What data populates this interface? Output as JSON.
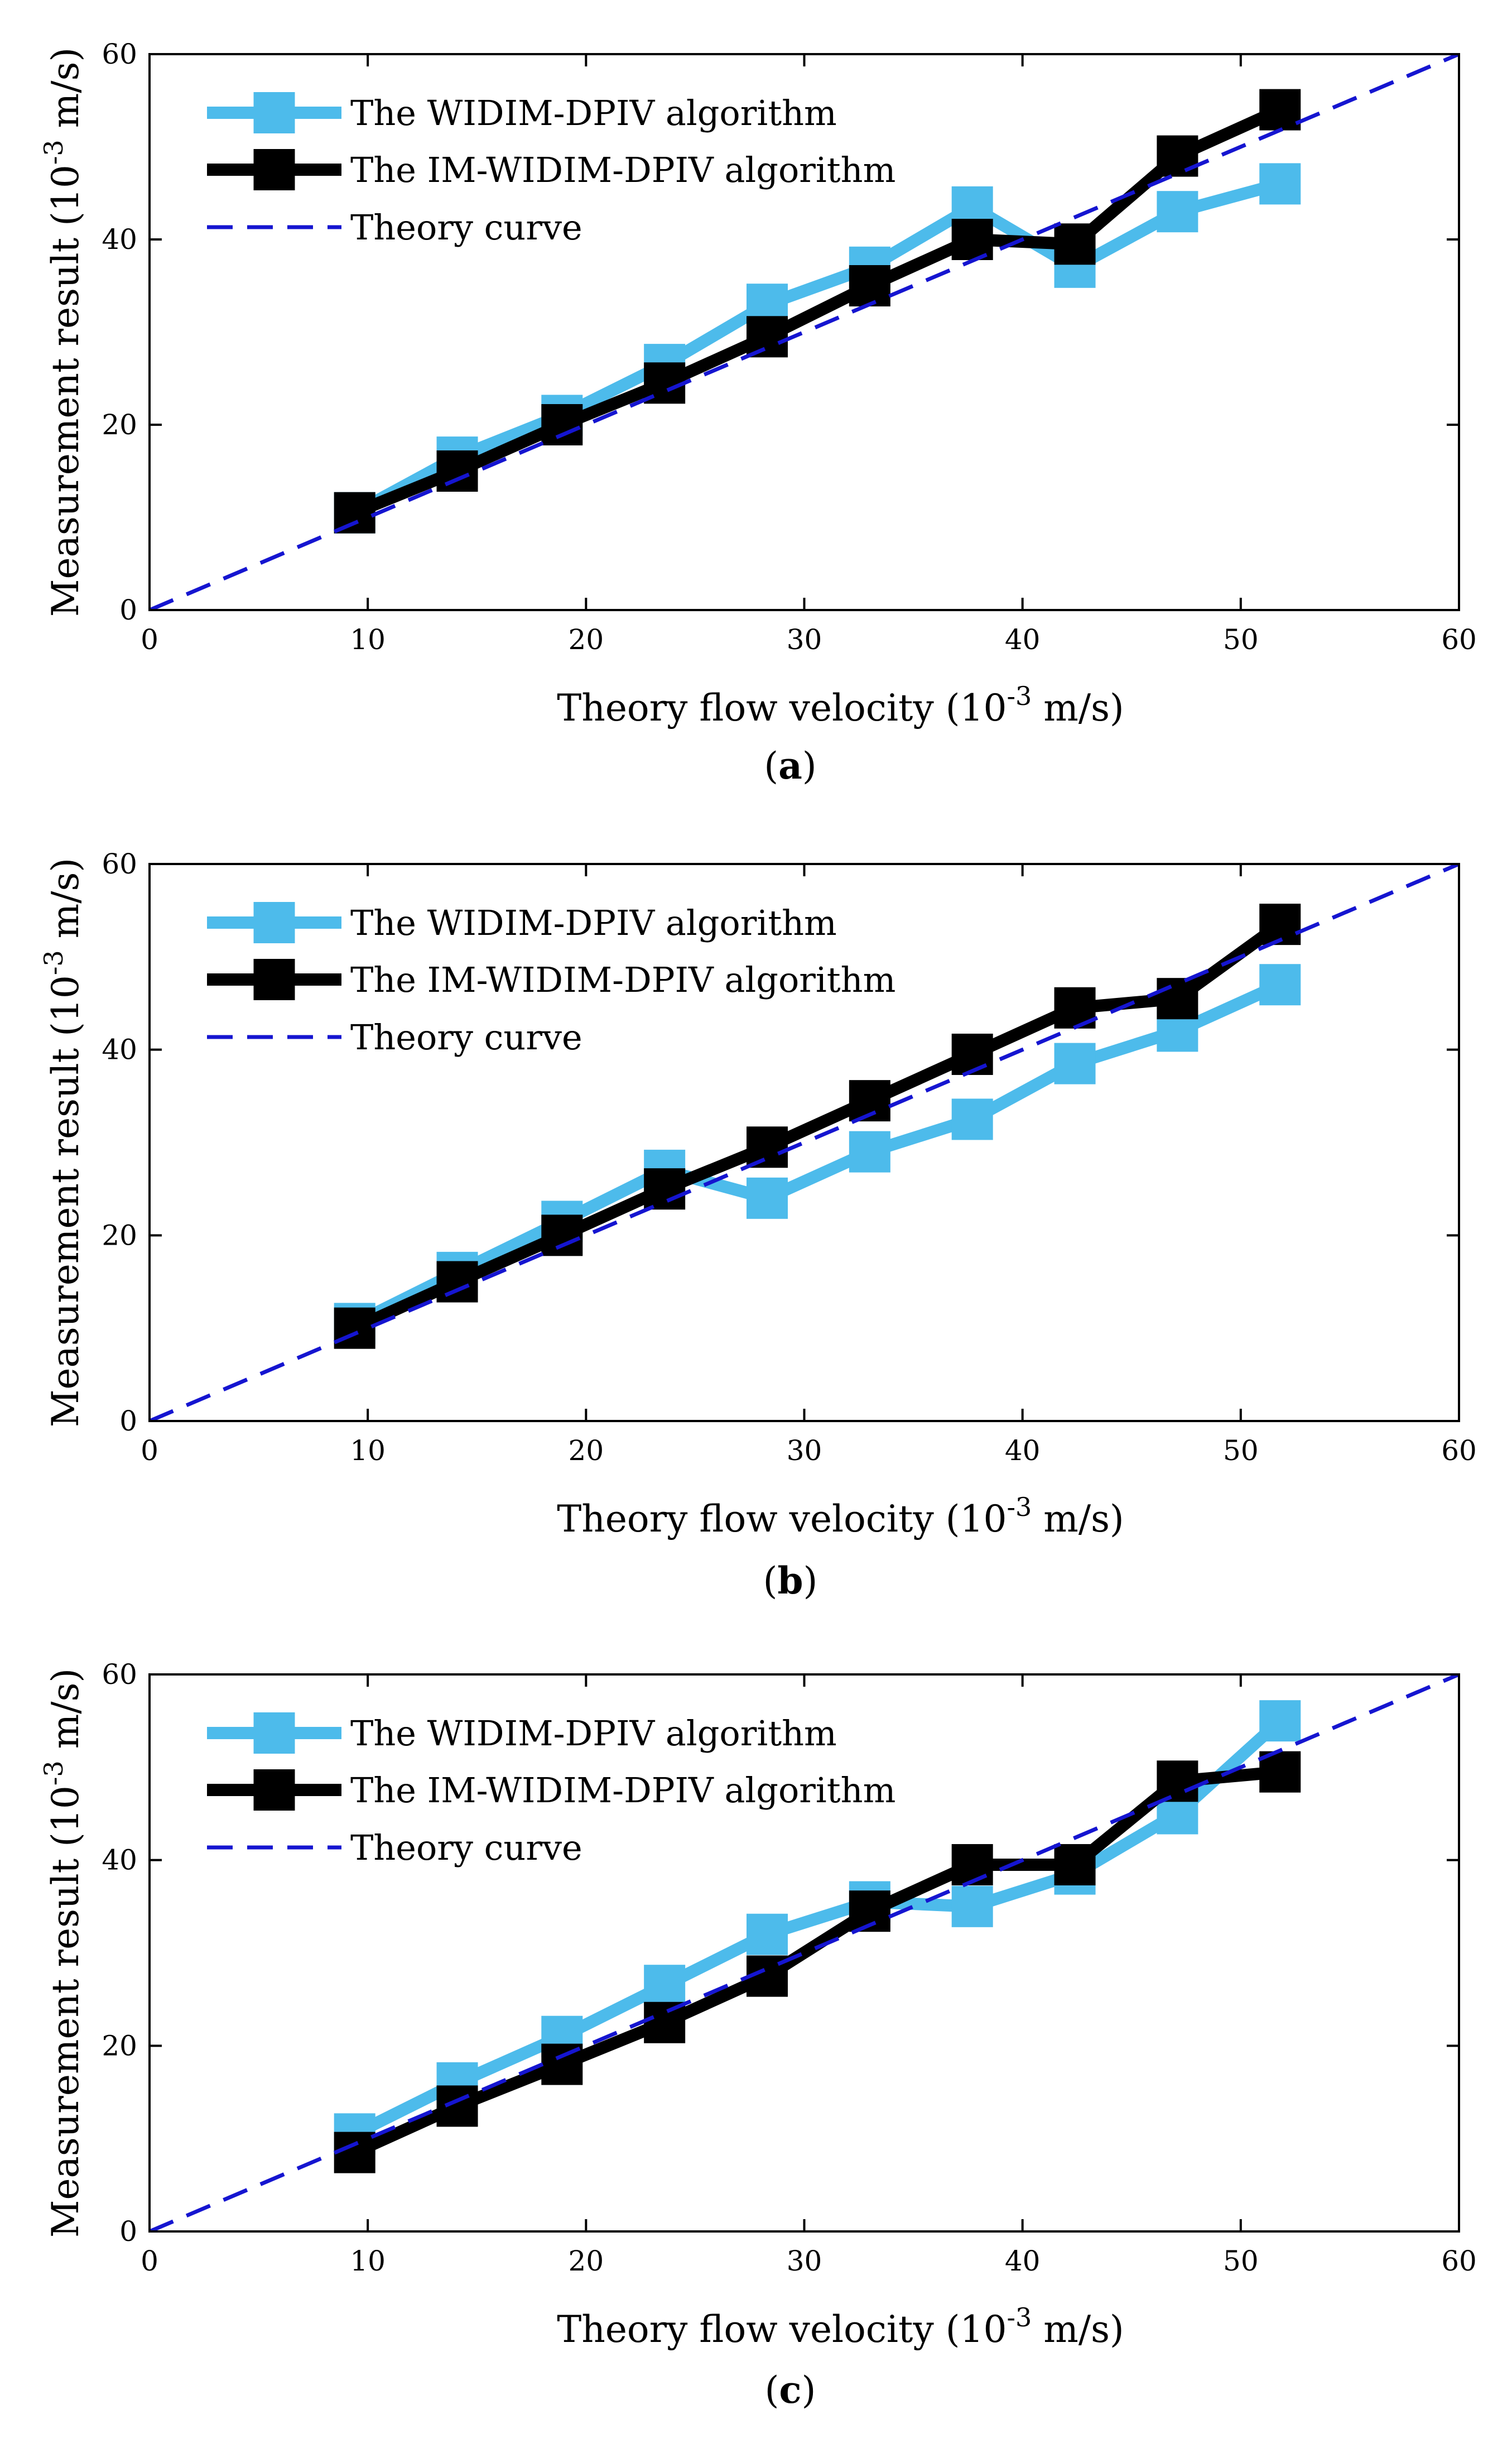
{
  "colors": {
    "widim": "#4dbbeb",
    "im_widim": "#000000",
    "theory": "#1515d0",
    "axes": "#000000"
  },
  "chart_data": [
    {
      "type": "line",
      "panel": "(a)",
      "caption": {
        "open": "(",
        "letter": "a",
        "close": ")"
      },
      "xlabel": {
        "main": "Theory flow velocity  (10",
        "sup": "-3",
        "tail": " m/s)"
      },
      "ylabel": {
        "main": "Measurement result (10",
        "sup": "-3",
        "tail": " m/s)"
      },
      "xlim": [
        0,
        60
      ],
      "ylim": [
        0,
        60
      ],
      "xticks": [
        0,
        10,
        20,
        30,
        40,
        50,
        60
      ],
      "yticks": [
        0,
        20,
        40,
        60
      ],
      "legend_position": "top-left",
      "x": [
        9.4,
        14.1,
        18.9,
        23.6,
        28.3,
        33.0,
        37.7,
        42.4,
        47.1,
        51.8
      ],
      "series": [
        {
          "name": "The WIDIM-DPIV algorithm",
          "key": "widim",
          "style": "solid-square",
          "values": [
            10.5,
            16.5,
            21.0,
            26.5,
            33.0,
            37.0,
            43.5,
            37.0,
            43.0,
            46.0
          ]
        },
        {
          "name": "The IM-WIDIM-DPIV algorithm",
          "key": "im_widim",
          "style": "solid-square",
          "values": [
            10.5,
            15.0,
            20.0,
            24.5,
            29.5,
            35.0,
            40.0,
            39.5,
            49.0,
            54.0
          ]
        },
        {
          "name": "Theory curve",
          "key": "theory",
          "style": "dashed",
          "line": [
            [
              0,
              0
            ],
            [
              60,
              60
            ]
          ]
        }
      ]
    },
    {
      "type": "line",
      "panel": "(b)",
      "caption": {
        "open": "(",
        "letter": "b",
        "close": ")"
      },
      "xlabel": {
        "main": "Theory flow velocity (10",
        "sup": "-3",
        "tail": " m/s)"
      },
      "ylabel": {
        "main": "Measurement result (10",
        "sup": "-3",
        "tail": " m/s)"
      },
      "xlim": [
        0,
        60
      ],
      "ylim": [
        0,
        60
      ],
      "xticks": [
        0,
        10,
        20,
        30,
        40,
        50,
        60
      ],
      "yticks": [
        0,
        20,
        40,
        60
      ],
      "legend_position": "top-left",
      "x": [
        9.4,
        14.1,
        18.9,
        23.6,
        28.3,
        33.0,
        37.7,
        42.4,
        47.1,
        51.8
      ],
      "series": [
        {
          "name": "The WIDIM-DPIV algorithm",
          "key": "widim",
          "style": "solid-square",
          "values": [
            10.5,
            16.0,
            21.5,
            27.0,
            24.0,
            29.0,
            32.5,
            38.5,
            42.0,
            47.0
          ]
        },
        {
          "name": "The IM-WIDIM-DPIV algorithm",
          "key": "im_widim",
          "style": "solid-square",
          "values": [
            10.0,
            15.0,
            20.0,
            25.0,
            29.5,
            34.5,
            39.5,
            44.5,
            45.5,
            53.5
          ]
        },
        {
          "name": "Theory curve",
          "key": "theory",
          "style": "dashed",
          "line": [
            [
              0,
              0
            ],
            [
              60,
              60
            ]
          ]
        }
      ]
    },
    {
      "type": "line",
      "panel": "(c)",
      "caption": {
        "open": "(",
        "letter": "c",
        "close": ")"
      },
      "xlabel": {
        "main": "Theory flow velocity (10",
        "sup": "-3",
        "tail": " m/s)"
      },
      "ylabel": {
        "main": "Measurement result (10",
        "sup": "-3",
        "tail": " m/s)"
      },
      "xlim": [
        0,
        60
      ],
      "ylim": [
        0,
        60
      ],
      "xticks": [
        0,
        10,
        20,
        30,
        40,
        50,
        60
      ],
      "yticks": [
        0,
        20,
        40,
        60
      ],
      "legend_position": "top-left",
      "x": [
        9.4,
        14.1,
        18.9,
        23.6,
        28.3,
        33.0,
        37.7,
        42.4,
        47.1,
        51.8
      ],
      "series": [
        {
          "name": "The WIDIM-DPIV algorithm",
          "key": "widim",
          "style": "solid-square",
          "values": [
            10.5,
            16.0,
            21.0,
            26.5,
            32.0,
            35.5,
            35.0,
            38.5,
            45.0,
            55.0
          ]
        },
        {
          "name": "The IM-WIDIM-DPIV algorithm",
          "key": "im_widim",
          "style": "solid-square",
          "values": [
            8.5,
            13.5,
            18.0,
            22.5,
            27.5,
            34.5,
            39.5,
            39.5,
            48.5,
            49.5
          ]
        },
        {
          "name": "Theory curve",
          "key": "theory",
          "style": "dashed",
          "line": [
            [
              0,
              0
            ],
            [
              60,
              60
            ]
          ]
        }
      ]
    }
  ]
}
